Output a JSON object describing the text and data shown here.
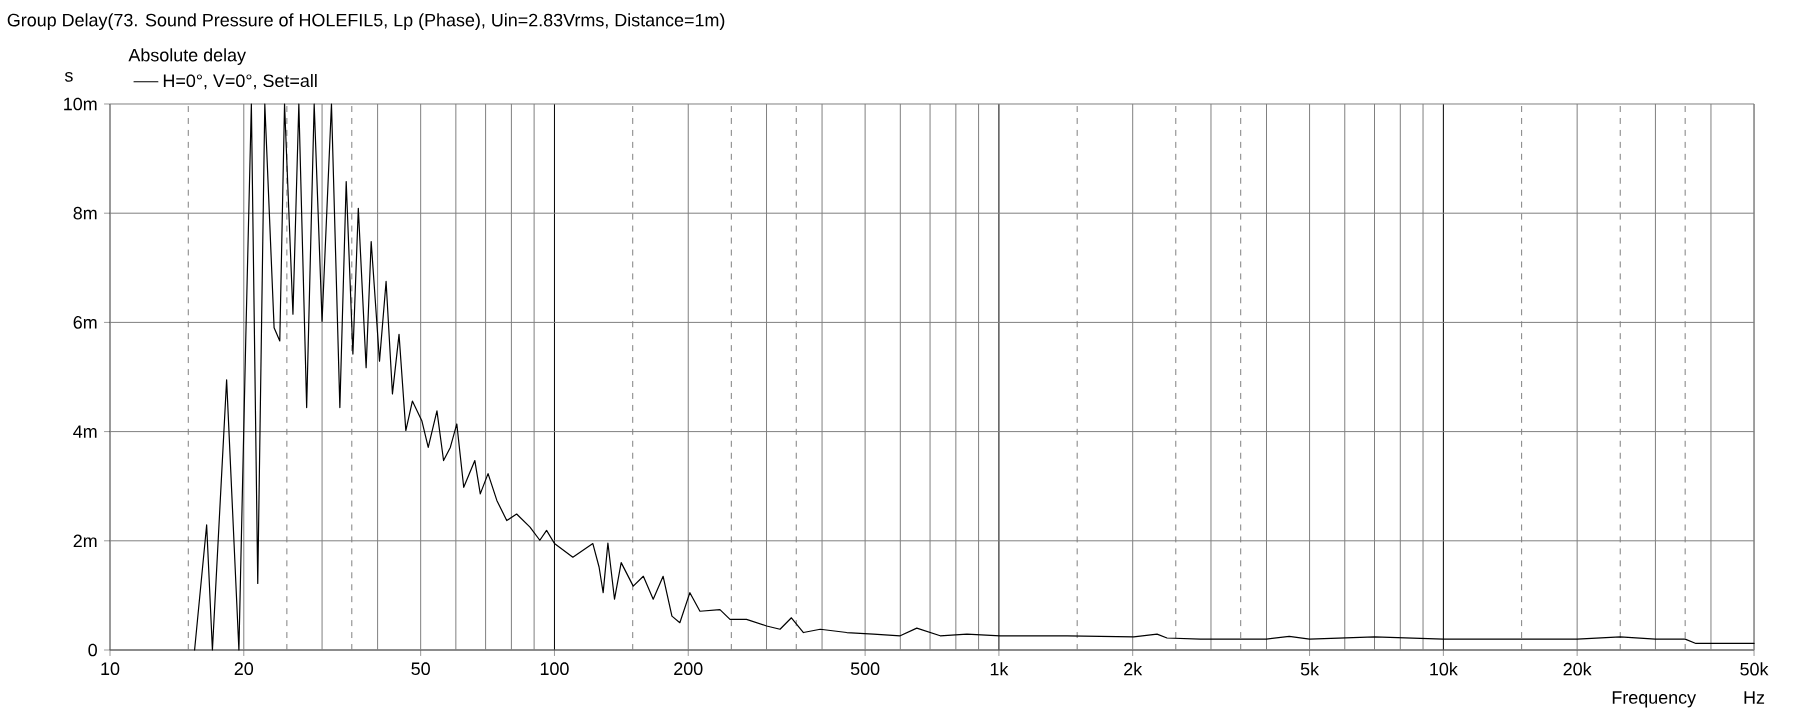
{
  "chart_data": {
    "type": "line",
    "title": "Group Delay(73. Sound Pressure of HOLEFIL5, Lp (Phase), Uin=2.83Vrms, Distance=1m)",
    "xlabel": "Frequency",
    "ylabel": "s",
    "legend_title": "Absolute delay",
    "annotations": [
      "Hz"
    ],
    "log": "x",
    "grid": true,
    "legend": "top left",
    "line_style": "solid",
    "xlim": [
      10,
      50000
    ],
    "ylim": [
      0,
      10
    ],
    "xticks": [
      10,
      20,
      50,
      100,
      200,
      500,
      {
        "value": 1000,
        "label": "1k"
      },
      {
        "value": 2000,
        "label": "2k"
      },
      {
        "value": 5000,
        "label": "5k"
      },
      {
        "value": 10000,
        "label": "10k"
      },
      {
        "value": 20000,
        "label": "20k"
      },
      {
        "value": 50000,
        "label": "50k"
      }
    ],
    "yticks": [
      0,
      {
        "value": 2,
        "label": "2m"
      },
      {
        "value": 4,
        "label": "4m"
      },
      {
        "value": 6,
        "label": "6m"
      },
      {
        "value": 8,
        "label": "8m"
      },
      {
        "value": 10,
        "label": "10m"
      }
    ],
    "series": [
      {
        "name": "H=0°, V=0°, Set=all",
        "color": "#000000",
        "x": [
          15.5,
          16.5,
          17.0,
          18.3,
          19.5,
          20.2,
          20.8,
          21.5,
          22.3,
          23.4,
          24.1,
          24.7,
          25.8,
          26.6,
          27.7,
          28.8,
          30.0,
          31.5,
          32.9,
          34.0,
          35.2,
          36.2,
          37.7,
          38.7,
          40.4,
          41.8,
          43.2,
          44.7,
          46.3,
          47.9,
          50.3,
          52.0,
          54.4,
          56.3,
          58.3,
          60.3,
          62.5,
          66.2,
          68.1,
          70.9,
          74.2,
          78.1,
          82.2,
          88.1,
          92.7,
          96.0,
          100,
          110,
          122,
          126,
          128.7,
          131.9,
          136.5,
          141.3,
          150.4,
          158.5,
          166.8,
          175.6,
          183.8,
          191.5,
          201.7,
          212.5,
          235.7,
          248.3,
          270.5,
          300.2,
          321.8,
          341.3,
          363.3,
          396.3,
          454.6,
          522.2,
          599.6,
          653.6,
          737.9,
          847.3,
          1007,
          1423,
          2011,
          2269,
          2389,
          2840,
          4000,
          4500,
          5000,
          7000,
          10000,
          20000,
          25000,
          30000,
          35000,
          37000,
          50000
        ],
        "values": [
          0,
          2.29,
          0,
          4.95,
          0,
          5.66,
          10,
          1.22,
          10,
          5.9,
          5.66,
          10,
          6.15,
          10,
          4.44,
          10,
          6.02,
          10,
          4.44,
          8.58,
          5.42,
          8.09,
          5.17,
          7.48,
          5.29,
          6.75,
          4.69,
          5.78,
          4.02,
          4.56,
          4.2,
          3.71,
          4.38,
          3.47,
          3.71,
          4.14,
          2.98,
          3.47,
          2.86,
          3.23,
          2.74,
          2.37,
          2.49,
          2.25,
          2.01,
          2.19,
          1.95,
          1.7,
          1.95,
          1.52,
          1.05,
          1.96,
          0.93,
          1.6,
          1.17,
          1.35,
          0.93,
          1.35,
          0.62,
          0.5,
          1.05,
          0.71,
          0.74,
          0.56,
          0.56,
          0.44,
          0.38,
          0.59,
          0.32,
          0.38,
          0.32,
          0.29,
          0.26,
          0.4,
          0.26,
          0.29,
          0.26,
          0.26,
          0.24,
          0.29,
          0.22,
          0.2,
          0.2,
          0.25,
          0.2,
          0.24,
          0.2,
          0.2,
          0.24,
          0.2,
          0.2,
          0.12,
          0.12
        ]
      }
    ]
  }
}
